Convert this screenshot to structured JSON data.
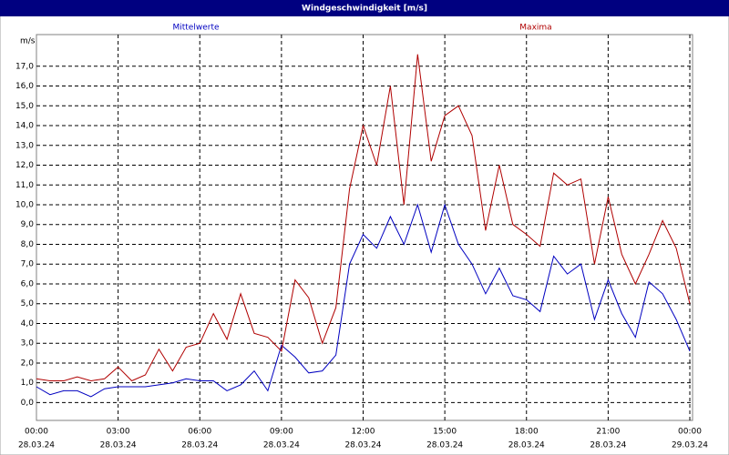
{
  "chart_data": {
    "type": "line",
    "title": "Windgeschwindigkeit [m/s]",
    "y_unit": "m/s",
    "x": [
      0,
      0.5,
      1,
      1.5,
      2,
      2.5,
      3,
      3.5,
      4,
      4.5,
      5,
      5.5,
      6,
      6.5,
      7,
      7.5,
      8,
      8.5,
      9,
      9.5,
      10,
      10.5,
      11,
      11.5,
      12,
      12.5,
      13,
      13.5,
      14,
      14.5,
      15,
      15.5,
      16,
      16.5,
      17,
      17.5,
      18,
      18.5,
      19,
      19.5,
      20,
      20.5,
      21,
      21.5,
      22,
      22.5,
      23,
      23.5,
      24
    ],
    "series": [
      {
        "name": "Mittelwerte",
        "color": "#0000c0",
        "values": [
          0.8,
          0.4,
          0.6,
          0.6,
          0.3,
          0.7,
          0.8,
          0.8,
          0.8,
          0.9,
          1.0,
          1.2,
          1.1,
          1.1,
          0.6,
          0.9,
          1.6,
          0.6,
          2.9,
          2.3,
          1.5,
          1.6,
          2.4,
          7.0,
          8.5,
          7.8,
          9.4,
          8.0,
          10.0,
          7.6,
          10.0,
          8.0,
          7.0,
          5.5,
          6.8,
          5.4,
          5.2,
          4.6,
          7.4,
          6.5,
          7.0,
          4.2,
          6.2,
          4.5,
          3.3,
          6.1,
          5.5,
          4.2,
          2.6
        ]
      },
      {
        "name": "Maxima",
        "color": "#b00000",
        "values": [
          1.2,
          1.1,
          1.1,
          1.3,
          1.1,
          1.2,
          1.8,
          1.1,
          1.4,
          2.7,
          1.6,
          2.8,
          3.0,
          4.5,
          3.2,
          5.5,
          3.5,
          3.3,
          2.6,
          6.2,
          5.3,
          3.0,
          4.8,
          10.8,
          14.0,
          12.0,
          16.0,
          10.0,
          17.6,
          12.2,
          14.5,
          15.0,
          13.5,
          8.7,
          12.0,
          9.0,
          8.5,
          7.9,
          11.6,
          11.0,
          11.3,
          7.0,
          10.4,
          7.5,
          6.0,
          7.5,
          9.2,
          7.8,
          5.0
        ]
      }
    ],
    "xlim": [
      0,
      24
    ],
    "xticks": [
      {
        "value": 0,
        "label": "00:00"
      },
      {
        "value": 3,
        "label": "03:00"
      },
      {
        "value": 6,
        "label": "06:00"
      },
      {
        "value": 9,
        "label": "09:00"
      },
      {
        "value": 12,
        "label": "12:00"
      },
      {
        "value": 15,
        "label": "15:00"
      },
      {
        "value": 18,
        "label": "18:00"
      },
      {
        "value": 21,
        "label": "21:00"
      },
      {
        "value": 24,
        "label": "00:00"
      }
    ],
    "xtick_dates": [
      "28.03.24",
      "28.03.24",
      "28.03.24",
      "28.03.24",
      "28.03.24",
      "28.03.24",
      "28.03.24",
      "28.03.24",
      "29.03.24"
    ],
    "ylim": [
      -0.9,
      18.6
    ],
    "yticks": [
      {
        "value": 0,
        "label": "0,0"
      },
      {
        "value": 1,
        "label": "1,0"
      },
      {
        "value": 2,
        "label": "2,0"
      },
      {
        "value": 3,
        "label": "3,0"
      },
      {
        "value": 4,
        "label": "4,0"
      },
      {
        "value": 5,
        "label": "5,0"
      },
      {
        "value": 6,
        "label": "6,0"
      },
      {
        "value": 7,
        "label": "7,0"
      },
      {
        "value": 8,
        "label": "8,0"
      },
      {
        "value": 9,
        "label": "9,0"
      },
      {
        "value": 10,
        "label": "10,0"
      },
      {
        "value": 11,
        "label": "11,0"
      },
      {
        "value": 12,
        "label": "12,0"
      },
      {
        "value": 13,
        "label": "13,0"
      },
      {
        "value": 14,
        "label": "14,0"
      },
      {
        "value": 15,
        "label": "15,0"
      },
      {
        "value": 16,
        "label": "16,0"
      },
      {
        "value": 17,
        "label": "17,0"
      }
    ],
    "grid": true
  }
}
